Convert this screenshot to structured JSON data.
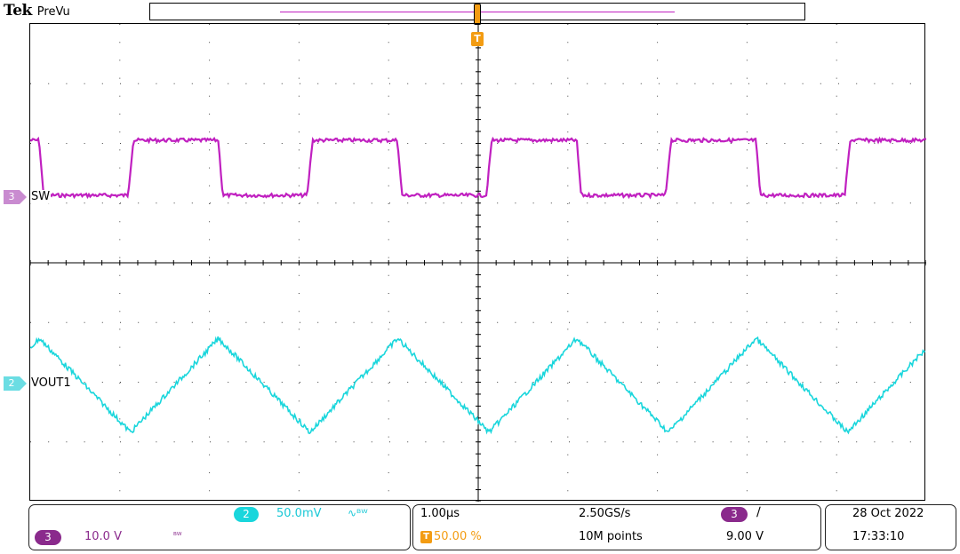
{
  "brand": {
    "name": "Tek",
    "mode": "PreVu"
  },
  "colors": {
    "ch2": "#19d6dc",
    "ch3": "#c020c0",
    "trigger": "#f39c12",
    "grid": "#000000"
  },
  "trigger": {
    "marker_label": "T"
  },
  "traces": {
    "ch3": {
      "number": "3",
      "label": "SW"
    },
    "ch2": {
      "number": "2",
      "label": "VOUT1"
    }
  },
  "readouts": {
    "ch2": {
      "number": "2",
      "scale": "50.0mV",
      "bw": "∿ᴮᵂ"
    },
    "ch3": {
      "number": "3",
      "scale": "10.0 V",
      "bw": "ᴮᵂ"
    },
    "horizontal": {
      "timebase": "1.00µs",
      "position": "50.00 %",
      "sample_rate": "2.50GS/s",
      "record_length": "10M points"
    },
    "trigger": {
      "source": "3",
      "slope": "∕",
      "level": "9.00 V"
    },
    "clock": {
      "date": "28 Oct  2022",
      "time": "17:33:10"
    }
  },
  "icons": [
    "trigger-marker-icon",
    "channel-marker-icon",
    "rising-edge-icon"
  ]
}
